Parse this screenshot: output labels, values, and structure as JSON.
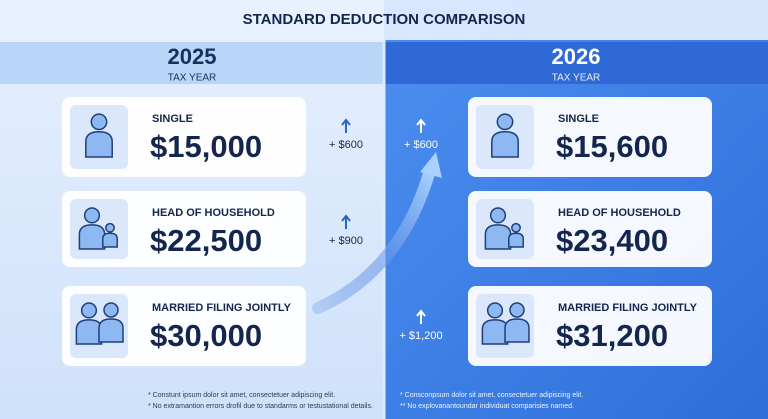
{
  "title": "STANDARD DEDUCTION COMPARISON",
  "panels": [
    {
      "year": "2025",
      "subtitle": "TAX YEAR",
      "cards": [
        {
          "label": "SINGLE",
          "amount": "$15,000"
        },
        {
          "label": "HEAD OF HOUSEHOLD",
          "amount": "$22,500"
        },
        {
          "label": "MARRIED FILING JOINTLY",
          "amount": "$30,000"
        }
      ]
    },
    {
      "year": "2026",
      "subtitle": "TAX YEAR",
      "cards": [
        {
          "label": "SINGLE",
          "amount": "$15,600"
        },
        {
          "label": "HEAD OF HOUSEHOLD",
          "amount": "$23,400"
        },
        {
          "label": "MARRIED FILING JOINTLY",
          "amount": "$31,200"
        }
      ]
    }
  ],
  "changes_left": [
    "+ $600",
    "+ $900"
  ],
  "changes_right": [
    "+ $600",
    "+ $1,200"
  ],
  "footnotes": {
    "left": [
      "* Constunt ipsum dolor sit amet, consectetuer adipiscing elit.",
      "* No extramantion errors drofil due to standarms or testustational details."
    ],
    "right": [
      "* Consconpsum dolor sit amet, consectetuer adipiscing elit.",
      "** No explovanantoundar individuat comparisies named."
    ]
  }
}
